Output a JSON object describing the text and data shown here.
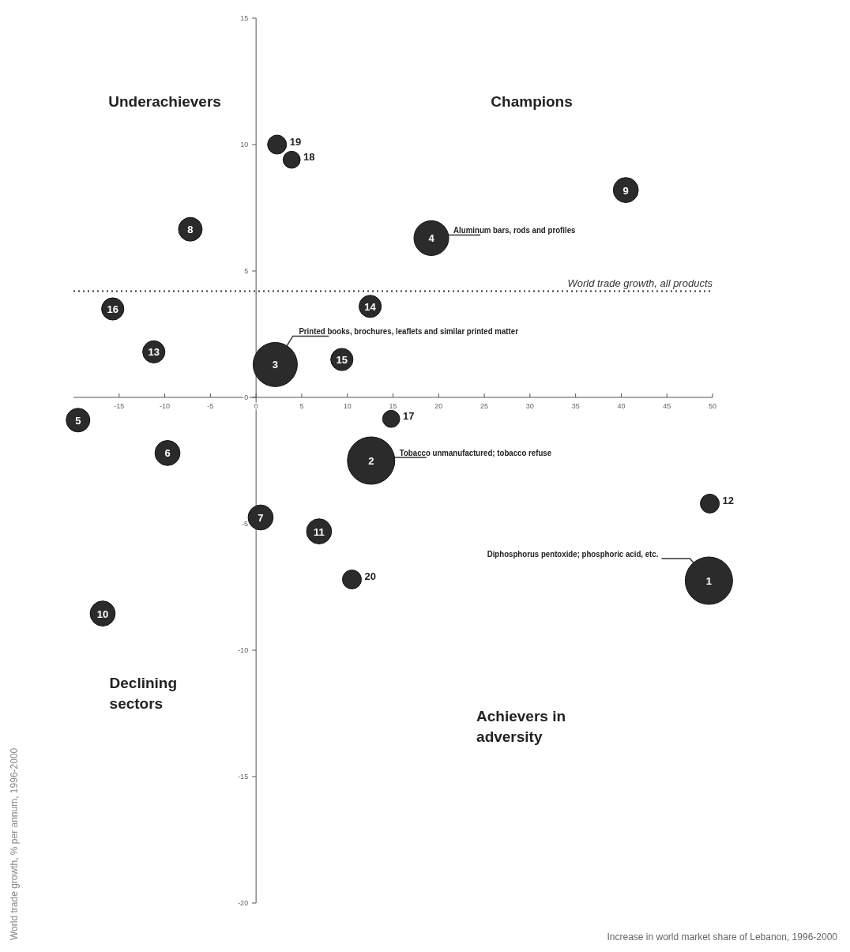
{
  "chart_data": {
    "type": "bubble",
    "xlabel": "Increase in world market share of Lebanon, 1996-2000",
    "color": "#2b2b2b",
    "series": [
      {
        "name": "1",
        "x": [
          49.6
        ],
        "values": [
          -7.25
        ],
        "sizes": [
          1
        ]
      },
      {
        "name": "2",
        "x": [
          12.6
        ],
        "values": [
          -2.5
        ],
        "sizes": [
          1
        ]
      },
      {
        "name": "3",
        "x": [
          2.1
        ],
        "values": [
          1.3
        ],
        "sizes": [
          0.87
        ]
      },
      {
        "name": "4",
        "x": [
          19.2
        ],
        "values": [
          6.3
        ],
        "sizes": [
          0.54
        ]
      },
      {
        "name": "5",
        "x": [
          -19.5
        ],
        "values": [
          -0.9
        ],
        "sizes": [
          0.25
        ]
      },
      {
        "name": "6",
        "x": [
          -9.7
        ],
        "values": [
          -2.2
        ],
        "sizes": [
          0.28
        ]
      },
      {
        "name": "7",
        "x": [
          0.5
        ],
        "values": [
          -4.75
        ],
        "sizes": [
          0.28
        ]
      },
      {
        "name": "8",
        "x": [
          -7.2
        ],
        "values": [
          6.65
        ],
        "sizes": [
          0.25
        ]
      },
      {
        "name": "9",
        "x": [
          40.5
        ],
        "values": [
          8.2
        ],
        "sizes": [
          0.28
        ]
      },
      {
        "name": "10",
        "x": [
          -16.8
        ],
        "values": [
          -8.55
        ],
        "sizes": [
          0.28
        ]
      },
      {
        "name": "11",
        "x": [
          6.9
        ],
        "values": [
          -5.3
        ],
        "sizes": [
          0.28
        ]
      },
      {
        "name": "12",
        "x": [
          49.7
        ],
        "values": [
          -4.2
        ],
        "sizes": [
          0.16
        ]
      },
      {
        "name": "13",
        "x": [
          -11.2
        ],
        "values": [
          1.8
        ],
        "sizes": [
          0.22
        ]
      },
      {
        "name": "14",
        "x": [
          12.5
        ],
        "values": [
          3.6
        ],
        "sizes": [
          0.22
        ]
      },
      {
        "name": "15",
        "x": [
          9.4
        ],
        "values": [
          1.5
        ],
        "sizes": [
          0.22
        ]
      },
      {
        "name": "16",
        "x": [
          -15.7
        ],
        "values": [
          3.5
        ],
        "sizes": [
          0.22
        ]
      },
      {
        "name": "17",
        "x": [
          14.8
        ],
        "values": [
          -0.85
        ],
        "sizes": [
          0.13
        ]
      },
      {
        "name": "18",
        "x": [
          3.9
        ],
        "values": [
          9.4
        ],
        "sizes": [
          0.13
        ]
      },
      {
        "name": "19",
        "x": [
          2.3
        ],
        "values": [
          10.0
        ],
        "sizes": [
          0.16
        ]
      },
      {
        "name": "20",
        "x": [
          10.5
        ],
        "values": [
          -7.2
        ],
        "sizes": [
          0.16
        ]
      }
    ],
    "xlim": [
      -20,
      50
    ],
    "xticks": [
      -15,
      -10,
      -5,
      0,
      5,
      10,
      15,
      20,
      25,
      30,
      35,
      40,
      45,
      50
    ],
    "ylim": [
      -20,
      15
    ],
    "yticks": [
      -20,
      -15,
      -10,
      -5,
      0,
      5,
      10,
      15
    ],
    "ref_lines": [
      {
        "axis": "y",
        "value": 4.2,
        "label": "World trade growth, all products",
        "line_style": "dotted"
      }
    ],
    "annotations": [
      "Underachievers",
      "Champions",
      "Declining sectors",
      "Achievers in adversity",
      "World trade growth, % per annum, 1996-2000",
      {
        "text": "Aluminum bars, rods and profiles",
        "x": 19.2,
        "y": 6.3
      },
      {
        "text": "Printed books, brochures, leaflets and similar printed matter",
        "x": 2.1,
        "y": 1.3
      },
      {
        "text": "Tobacco unmanufactured; tobacco refuse",
        "x": 12.6,
        "y": -2.5
      },
      {
        "text": "Diphosphorus pentoxide; phosphoric acid, etc.",
        "x": 49.6,
        "y": -7.25
      }
    ]
  }
}
